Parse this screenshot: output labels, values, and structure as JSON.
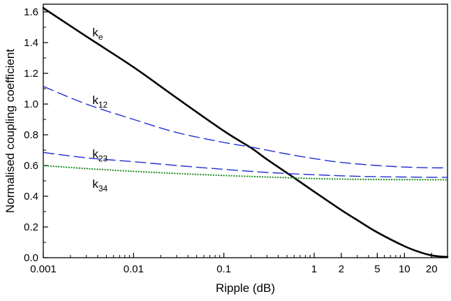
{
  "chart_data": {
    "type": "line",
    "xlabel": "Ripple (dB)",
    "ylabel": "Normalised coupling coefficient",
    "xscale": "log",
    "xlim": [
      0.001,
      30
    ],
    "ylim": [
      0,
      1.65
    ],
    "grid": false,
    "legend": "inline labels next to curves",
    "x_ticks": [
      {
        "value": 0.001,
        "label": "0.001"
      },
      {
        "value": 0.01,
        "label": "0.01"
      },
      {
        "value": 0.1,
        "label": "0.1"
      },
      {
        "value": 1,
        "label": "1"
      },
      {
        "value": 2,
        "label": "2"
      },
      {
        "value": 5,
        "label": "5"
      },
      {
        "value": 10,
        "label": "10"
      },
      {
        "value": 20,
        "label": "20"
      }
    ],
    "y_ticks": [
      {
        "value": 0.0,
        "label": "0.0"
      },
      {
        "value": 0.2,
        "label": "0.2"
      },
      {
        "value": 0.4,
        "label": "0.4"
      },
      {
        "value": 0.6,
        "label": "0.6"
      },
      {
        "value": 0.8,
        "label": "0.8"
      },
      {
        "value": 1.0,
        "label": "1.0"
      },
      {
        "value": 1.2,
        "label": "1.2"
      },
      {
        "value": 1.4,
        "label": "1.4"
      },
      {
        "value": 1.6,
        "label": "1.6"
      }
    ],
    "series": [
      {
        "name": "ke",
        "label_base": "k",
        "label_sub": "e",
        "color": "#000000",
        "style": "solid",
        "label_at": [
          0.0035,
          1.44
        ],
        "x": [
          0.001,
          0.003,
          0.01,
          0.03,
          0.1,
          0.2,
          0.3,
          0.6,
          1,
          2,
          3,
          5,
          10,
          15,
          20,
          25,
          30
        ],
        "y": [
          1.625,
          1.44,
          1.24,
          1.04,
          0.825,
          0.715,
          0.64,
          0.52,
          0.43,
          0.31,
          0.245,
          0.165,
          0.075,
          0.035,
          0.015,
          0.008,
          0.005
        ]
      },
      {
        "name": "k12",
        "label_base": "k",
        "label_sub": "12",
        "color": "#1f2fd0",
        "style": "dashed",
        "label_at": [
          0.0035,
          1.0
        ],
        "x": [
          0.001,
          0.003,
          0.01,
          0.03,
          0.1,
          0.2,
          0.5,
          1,
          2,
          5,
          10,
          20,
          30
        ],
        "y": [
          1.115,
          1.0,
          0.9,
          0.815,
          0.75,
          0.72,
          0.675,
          0.645,
          0.62,
          0.6,
          0.59,
          0.585,
          0.585
        ]
      },
      {
        "name": "k23",
        "label_base": "k",
        "label_sub": "23",
        "color": "#1f2fd0",
        "style": "dashed",
        "label_at": [
          0.0035,
          0.65
        ],
        "x": [
          0.001,
          0.003,
          0.01,
          0.03,
          0.1,
          0.3,
          1,
          3,
          10,
          30
        ],
        "y": [
          0.685,
          0.65,
          0.625,
          0.6,
          0.575,
          0.555,
          0.54,
          0.53,
          0.525,
          0.523
        ]
      },
      {
        "name": "k34",
        "label_base": "k",
        "label_sub": "34",
        "color": "#1a8a1a",
        "style": "dotted",
        "label_at": [
          0.0035,
          0.455
        ],
        "x": [
          0.001,
          0.003,
          0.01,
          0.03,
          0.1,
          0.3,
          1,
          3,
          10,
          30
        ],
        "y": [
          0.6,
          0.58,
          0.562,
          0.548,
          0.535,
          0.525,
          0.515,
          0.51,
          0.508,
          0.507
        ]
      }
    ]
  }
}
